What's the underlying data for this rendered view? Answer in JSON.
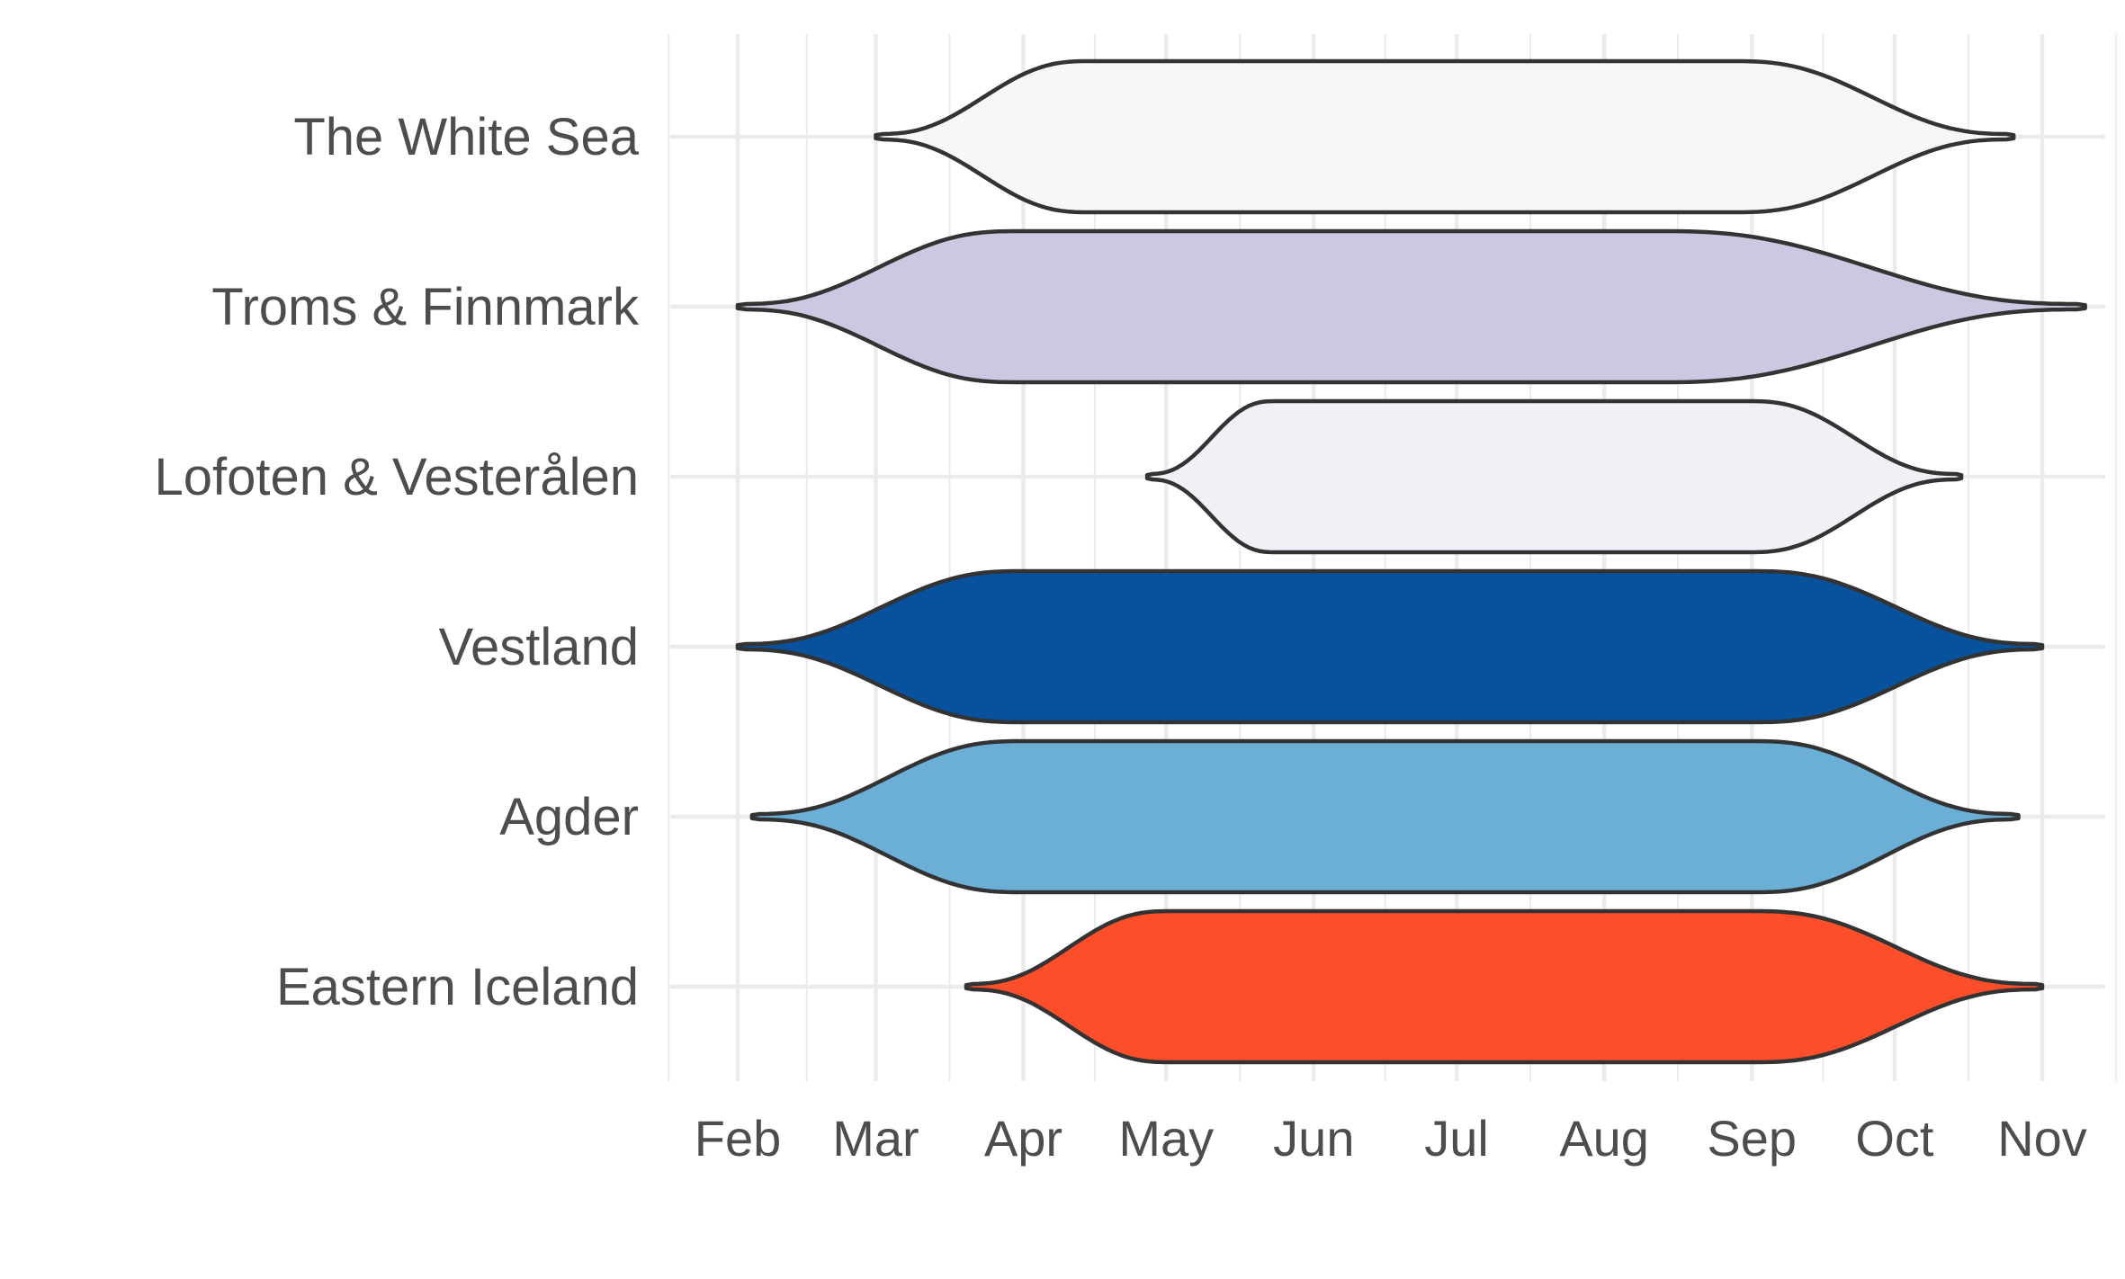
{
  "chart_data": {
    "type": "violin",
    "title": "",
    "xlabel": "",
    "ylabel": "",
    "orientation": "horizontal",
    "x_axis": {
      "type": "month",
      "tick_labels": [
        "Feb",
        "Mar",
        "Apr",
        "May",
        "Jun",
        "Jul",
        "Aug",
        "Sep",
        "Oct",
        "Nov"
      ],
      "range": [
        "2020-01-23",
        "2020-11-17"
      ]
    },
    "grid": true,
    "legend": "none",
    "categories": [
      "The White Sea",
      "Troms & Finnmark",
      "Lofoten & Vesterålen",
      "Vestland",
      "Agder",
      "Eastern Iceland"
    ],
    "series": [
      {
        "name": "The White Sea",
        "color": "#f7f7f7",
        "start": "2020-03-01",
        "end": "2020-10-26",
        "inner_start": "2020-04-15",
        "inner_end": "2020-08-28",
        "relative_width": 1.0
      },
      {
        "name": "Troms & Finnmark",
        "color": "#cbc9e2",
        "start": "2020-02-01",
        "end": "2020-11-10",
        "inner_start": "2020-03-31",
        "inner_end": "2020-08-12",
        "relative_width": 1.0
      },
      {
        "name": "Lofoten & Vesterålen",
        "color": "#f2f0f7",
        "start": "2020-04-27",
        "end": "2020-10-15",
        "inner_start": "2020-05-24",
        "inner_end": "2020-08-31",
        "relative_width": 1.0
      },
      {
        "name": "Vestland",
        "color": "#08519c",
        "start": "2020-02-01",
        "end": "2020-11-01",
        "inner_start": "2020-04-01",
        "inner_end": "2020-09-01",
        "relative_width": 1.0
      },
      {
        "name": "Agder",
        "color": "#6baed6",
        "start": "2020-02-04",
        "end": "2020-10-27",
        "inner_start": "2020-04-01",
        "inner_end": "2020-09-01",
        "relative_width": 1.0
      },
      {
        "name": "Eastern Iceland",
        "color": "#fc4e2a",
        "start": "2020-03-20",
        "end": "2020-11-01",
        "inner_start": "2020-05-02",
        "inner_end": "2020-09-01",
        "relative_width": 1.0
      }
    ]
  },
  "colors": {
    "grid": "#ebebeb",
    "outline": "#333333",
    "text": "#4d4d4d",
    "background": "#ffffff"
  }
}
